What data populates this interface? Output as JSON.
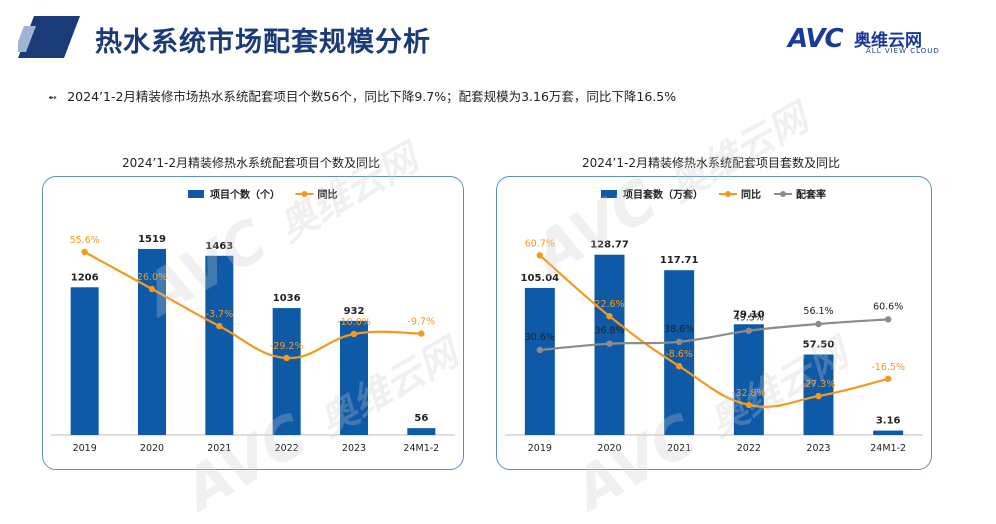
{
  "header": {
    "title": "热水系统市场配套规模分析",
    "logo_brand": "AVC",
    "logo_cn": "奥维云网",
    "logo_en": "ALL VIEW CLOUD"
  },
  "bullet": {
    "text": "2024’1-2月精装修市场热水系统配套项目个数56个，同比下降9.7%；配套规模为3.16万套，同比下降16.5%"
  },
  "watermark": {
    "brand": "AVC",
    "cn": "奥维云网",
    "en": "ALL VIEW CLOUD"
  },
  "colors": {
    "bar": "#0e5aa7",
    "yoy": "#f39a1e",
    "ratio": "#8c8c8c",
    "title": "#1a3a78",
    "panel_border": "#5b8fc0"
  },
  "chart_data": [
    {
      "type": "bar",
      "title": "2024’1-2月精装修热水系统配套项目个数及同比",
      "categories": [
        "2019",
        "2020",
        "2021",
        "2022",
        "2023",
        "24M1-2"
      ],
      "series": [
        {
          "name": "项目个数（个）",
          "type": "bar",
          "values": [
            1206,
            1519,
            1463,
            1036,
            932,
            56
          ],
          "labels": [
            "1206",
            "1519",
            "1463",
            "1036",
            "932",
            "56"
          ]
        },
        {
          "name": "同比",
          "type": "line",
          "values": [
            55.6,
            26.0,
            -3.7,
            -29.2,
            -10.0,
            -9.7
          ],
          "labels": [
            "55.6%",
            "26.0%",
            "-3.7%",
            "-29.2%",
            "-10.0%",
            "-9.7%"
          ]
        }
      ],
      "legend_position": "top"
    },
    {
      "type": "bar",
      "title": "2024’1-2月精装修热水系统配套项目套数及同比",
      "categories": [
        "2019",
        "2020",
        "2021",
        "2022",
        "2023",
        "24M1-2"
      ],
      "series": [
        {
          "name": "项目套数（万套）",
          "type": "bar",
          "values": [
            105.04,
            128.77,
            117.71,
            79.1,
            57.5,
            3.16
          ],
          "labels": [
            "105.04",
            "128.77",
            "117.71",
            "79.10",
            "57.50",
            "3.16"
          ]
        },
        {
          "name": "同比",
          "type": "line",
          "values": [
            60.7,
            22.6,
            -8.6,
            -32.8,
            -27.3,
            -16.5
          ],
          "labels": [
            "60.7%",
            "22.6%",
            "-8.6%",
            "-32.8%",
            "-27.3%",
            "-16.5%"
          ]
        },
        {
          "name": "配套率",
          "type": "line",
          "values": [
            30.6,
            36.8,
            38.6,
            49.5,
            56.1,
            60.6
          ],
          "labels": [
            "30.6%",
            "36.8%",
            "38.6%",
            "49.5%",
            "56.1%",
            "60.6%"
          ]
        }
      ],
      "legend_position": "top"
    }
  ]
}
